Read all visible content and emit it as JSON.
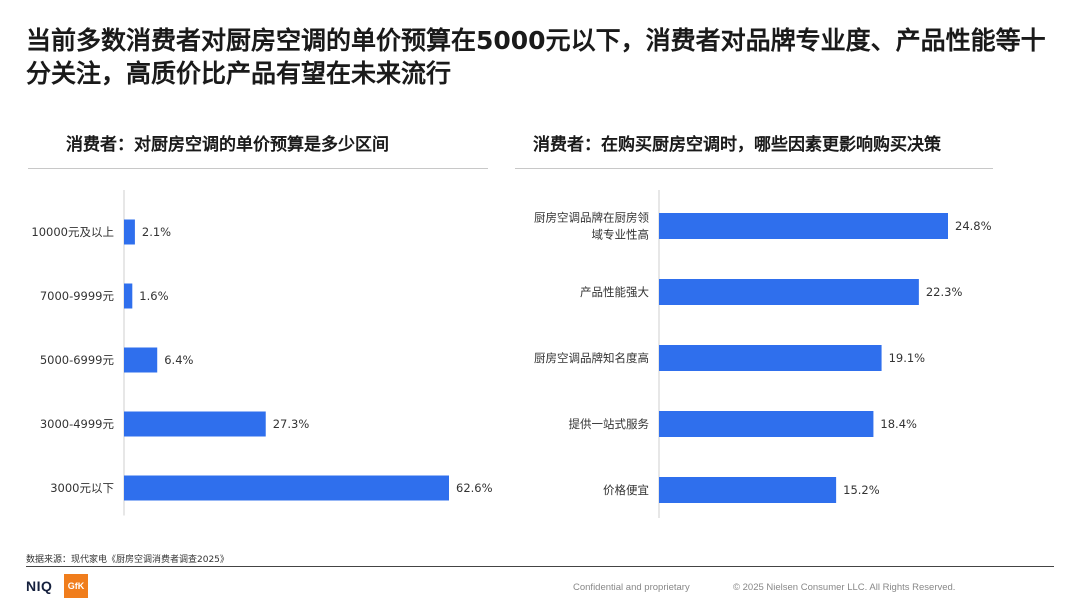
{
  "title": "当前多数消费者对厨房空调的单价预算在5000元以下，消费者对品牌专业度、产品性能等十分关注，高质价比产品有望在未来流行",
  "chart_data": [
    {
      "type": "bar",
      "orientation": "horizontal",
      "title": "消费者：对厨房空调的单价预算是多少区间",
      "categories": [
        "10000元及以上",
        "7000-9999元",
        "5000-6999元",
        "3000-4999元",
        "3000元以下"
      ],
      "values": [
        2.1,
        1.6,
        6.4,
        27.3,
        62.6
      ],
      "value_labels": [
        "2.1%",
        "1.6%",
        "6.4%",
        "27.3%",
        "62.6%"
      ],
      "unit": "%",
      "xlim": [
        0,
        62.6
      ],
      "grid": false,
      "bar_color": "#2f6fed"
    },
    {
      "type": "bar",
      "orientation": "horizontal",
      "title": "消费者：在购买厨房空调时，哪些因素更影响购买决策",
      "categories": [
        [
          "厨房空调品牌在厨房领",
          "域专业性高"
        ],
        [
          "产品性能强大"
        ],
        [
          "厨房空调品牌知名度高"
        ],
        [
          "提供一站式服务"
        ],
        [
          "价格便宜"
        ]
      ],
      "values": [
        24.8,
        22.3,
        19.1,
        18.4,
        15.2
      ],
      "value_labels": [
        "24.8%",
        "22.3%",
        "19.1%",
        "18.4%",
        "15.2%"
      ],
      "unit": "%",
      "xlim": [
        0,
        24.8
      ],
      "grid": false,
      "bar_color": "#2f6fed"
    }
  ],
  "source": "数据来源：现代家电《厨房空调消费者调查2025》",
  "footer": {
    "confidential": "Confidential and proprietary",
    "copyright": "© 2025 Nielsen Consumer LLC. All Rights Reserved.",
    "logo_niq": "NIQ",
    "logo_gfk": "GfK"
  },
  "colors": {
    "bar": "#2f6fed",
    "gfk_logo": "#f07d1c",
    "niq_logo": "#16213e"
  }
}
